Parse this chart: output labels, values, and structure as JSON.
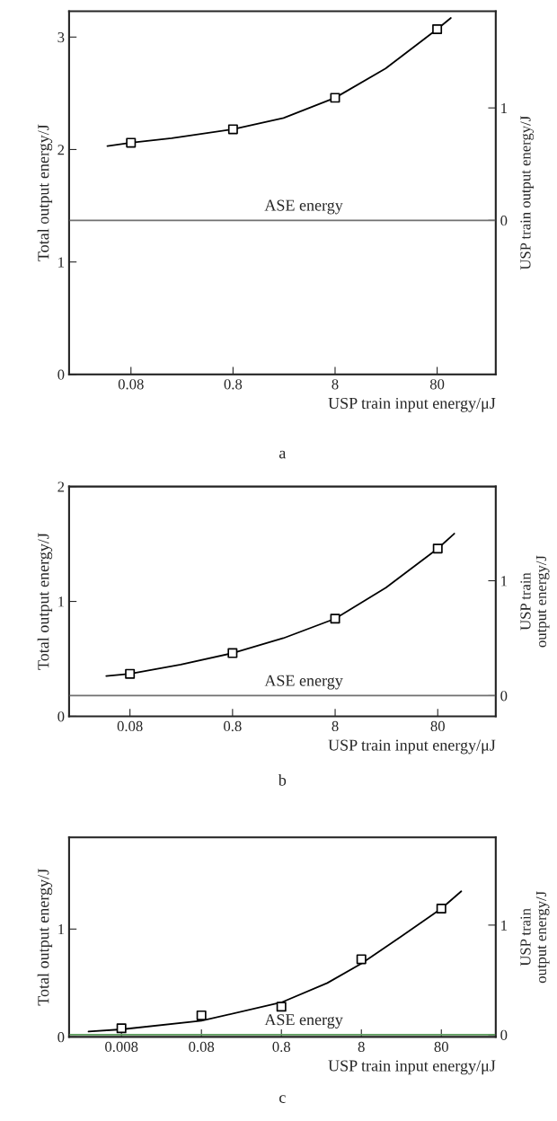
{
  "chart_data": [
    {
      "type": "scatter",
      "title": "a",
      "xlabel": "USP train input energy/μJ",
      "ylabel": "Total output energy/J",
      "y2label": "USP train output energy/J",
      "log": "x",
      "xlim": [
        0.0198,
        300
      ],
      "xticks": [
        0.08,
        0.8,
        8,
        80
      ],
      "ylim": [
        0,
        3.23
      ],
      "yticks": [
        0,
        1,
        2,
        3
      ],
      "y2lim": [
        -1.37,
        1.86
      ],
      "y2ticks": [
        0,
        1
      ],
      "series": [
        {
          "marker": "square",
          "color": "#000000",
          "x": [
            0.08,
            0.8,
            8,
            80
          ],
          "values": [
            2.06,
            2.18,
            2.46,
            3.07
          ]
        },
        {
          "type": "line",
          "marker": "none",
          "line_style": "solid",
          "color": "#000000",
          "x": [
            0.047,
            0.08,
            0.2,
            0.8,
            2.5,
            8,
            25,
            80,
            109
          ],
          "values": [
            2.03,
            2.06,
            2.1,
            2.18,
            2.28,
            2.46,
            2.72,
            3.07,
            3.17
          ]
        }
      ],
      "ref_lines": [
        {
          "axis": "y2",
          "value": 0,
          "label": "ASE energy",
          "color": "#707070"
        }
      ]
    },
    {
      "type": "scatter",
      "title": "b",
      "xlabel": "USP train input energy/μJ",
      "ylabel": "Total output energy/J",
      "y2label": "USP train\noutput energy/J",
      "log": "x",
      "xlim": [
        0.0204,
        294
      ],
      "xticks": [
        0.08,
        0.8,
        8,
        80
      ],
      "ylim": [
        0,
        2
      ],
      "yticks": [
        0,
        1,
        2
      ],
      "y2lim": [
        -0.18,
        1.82
      ],
      "y2ticks": [
        0,
        1
      ],
      "series": [
        {
          "marker": "square",
          "color": "#000000",
          "x": [
            0.08,
            0.8,
            8,
            80
          ],
          "values": [
            0.37,
            0.55,
            0.85,
            1.46
          ]
        },
        {
          "type": "line",
          "marker": "none",
          "line_style": "solid",
          "color": "#000000",
          "x": [
            0.047,
            0.08,
            0.25,
            0.8,
            2.5,
            8,
            25,
            80,
            116
          ],
          "values": [
            0.35,
            0.37,
            0.45,
            0.55,
            0.68,
            0.85,
            1.12,
            1.46,
            1.59
          ]
        }
      ],
      "ref_lines": [
        {
          "axis": "y2",
          "value": 0,
          "label": "ASE energy",
          "color": "#707070"
        }
      ]
    },
    {
      "type": "scatter",
      "title": "c",
      "xlabel": "USP train input energy/μJ",
      "ylabel": "Total output energy/J",
      "y2label": "USP train\noutput energy/J",
      "log": "x",
      "xlim": [
        0.00177,
        383
      ],
      "xticks": [
        0.008,
        0.08,
        0.8,
        8,
        80
      ],
      "ylim": [
        0,
        1.85
      ],
      "yticks": [
        0,
        1
      ],
      "y2lim": [
        -0.02,
        1.8
      ],
      "y2ticks": [
        0,
        1
      ],
      "series": [
        {
          "marker": "square",
          "color": "#000000",
          "x": [
            0.008,
            0.08,
            0.8,
            8,
            80
          ],
          "values": [
            0.08,
            0.2,
            0.28,
            0.72,
            1.19
          ]
        },
        {
          "type": "line",
          "marker": "none",
          "line_style": "solid",
          "color": "#000000",
          "x": [
            0.0031,
            0.008,
            0.08,
            0.8,
            3,
            8,
            25,
            80,
            142
          ],
          "values": [
            0.05,
            0.07,
            0.15,
            0.32,
            0.5,
            0.68,
            0.93,
            1.19,
            1.35
          ]
        }
      ],
      "ref_lines": [
        {
          "axis": "y2",
          "value": 0,
          "label": "ASE energy",
          "color": "#5a9a5a"
        }
      ]
    }
  ]
}
